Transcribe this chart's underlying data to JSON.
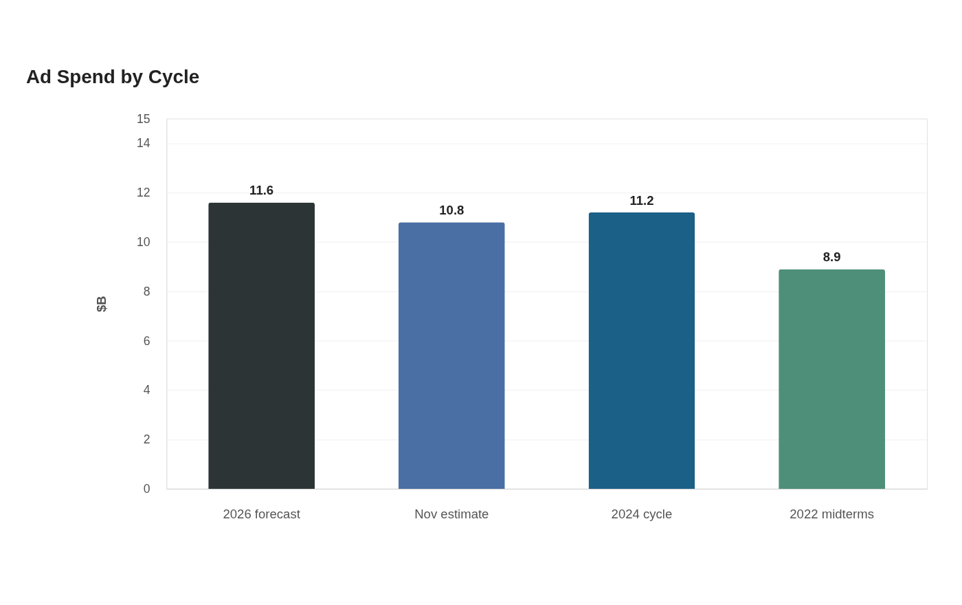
{
  "chart_data": {
    "type": "bar",
    "title": "Ad Spend by Cycle",
    "ylabel": "$B",
    "categories": [
      "2026 forecast",
      "Nov estimate",
      "2024 cycle",
      "2022 midterms"
    ],
    "values": [
      11.6,
      10.8,
      11.2,
      8.9
    ],
    "colors": [
      "#2d3436",
      "#4a6fa5",
      "#1a6087",
      "#4e8f7a"
    ],
    "ylim": [
      0,
      15
    ],
    "yticks": [
      0,
      2,
      4,
      6,
      8,
      10,
      12,
      14,
      15
    ],
    "grid": "y",
    "data_labels": true
  }
}
